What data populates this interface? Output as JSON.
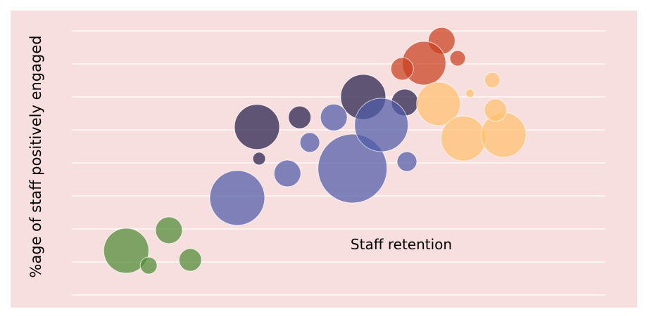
{
  "chart_data": {
    "type": "scatter",
    "subtype": "bubble",
    "title": "",
    "xlabel": "",
    "ylabel": "%age of staff positively engaged",
    "annotation": "Staff retention",
    "xlim": [
      0,
      100
    ],
    "ylim": [
      0,
      8
    ],
    "grid": "horizontal",
    "legend": "none",
    "background": "#f8dfdf",
    "series": [
      {
        "color": "#4f8a35",
        "points": [
          {
            "x": 10.2,
            "y": 1.34,
            "size": 32
          },
          {
            "x": 14.4,
            "y": 0.89,
            "size": 12
          },
          {
            "x": 18.2,
            "y": 1.96,
            "size": 19
          },
          {
            "x": 22.2,
            "y": 1.06,
            "size": 16
          }
        ]
      },
      {
        "color": "#241f4a",
        "points": [
          {
            "x": 34.7,
            "y": 5.09,
            "size": 32
          },
          {
            "x": 35.1,
            "y": 4.13,
            "size": 9
          },
          {
            "x": 42.7,
            "y": 5.38,
            "size": 16
          },
          {
            "x": 54.6,
            "y": 6.0,
            "size": 32
          },
          {
            "x": 62.4,
            "y": 5.83,
            "size": 19
          }
        ]
      },
      {
        "color": "#4f5ca8",
        "points": [
          {
            "x": 31.0,
            "y": 2.94,
            "size": 39
          },
          {
            "x": 40.4,
            "y": 3.68,
            "size": 19
          },
          {
            "x": 44.6,
            "y": 4.62,
            "size": 14
          },
          {
            "x": 49.1,
            "y": 5.38,
            "size": 19
          },
          {
            "x": 52.6,
            "y": 3.83,
            "size": 49
          },
          {
            "x": 58.0,
            "y": 5.15,
            "size": 38
          },
          {
            "x": 62.8,
            "y": 4.04,
            "size": 14
          }
        ]
      },
      {
        "color": "#c9401f",
        "points": [
          {
            "x": 69.3,
            "y": 7.7,
            "size": 19
          },
          {
            "x": 66.0,
            "y": 7.02,
            "size": 31
          },
          {
            "x": 61.9,
            "y": 6.85,
            "size": 16
          },
          {
            "x": 72.3,
            "y": 7.17,
            "size": 11
          }
        ]
      },
      {
        "color": "#ffc070",
        "points": [
          {
            "x": 68.7,
            "y": 5.79,
            "size": 31
          },
          {
            "x": 73.4,
            "y": 4.74,
            "size": 32
          },
          {
            "x": 80.9,
            "y": 4.85,
            "size": 32
          },
          {
            "x": 78.8,
            "y": 6.51,
            "size": 11
          },
          {
            "x": 74.6,
            "y": 6.11,
            "size": 6
          },
          {
            "x": 79.4,
            "y": 5.6,
            "size": 16
          }
        ]
      }
    ]
  }
}
